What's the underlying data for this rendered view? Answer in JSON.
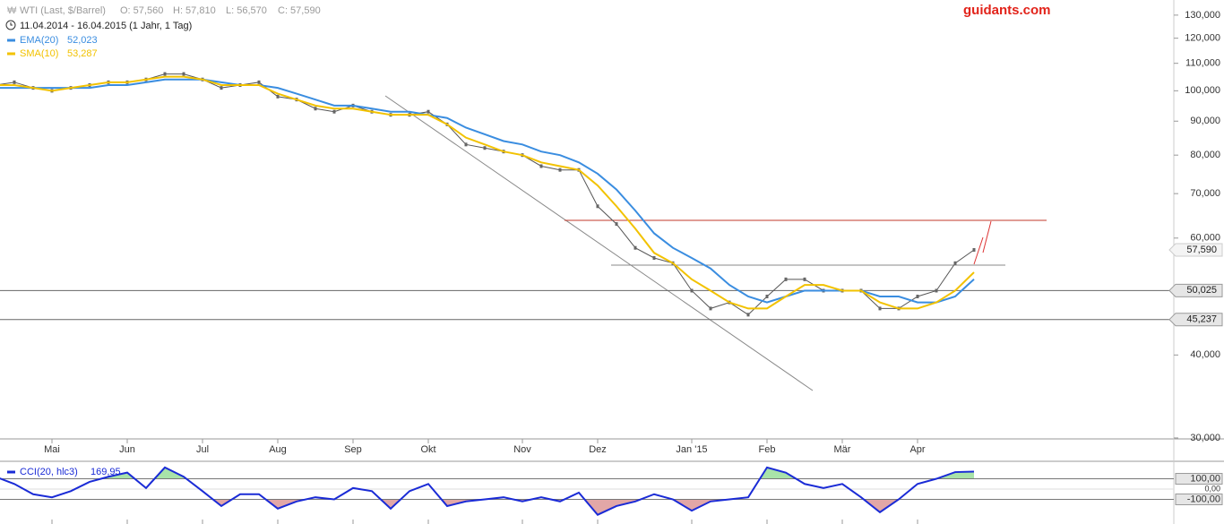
{
  "chart_data": [
    {
      "type": "line",
      "title": "WTI (Last, $/Barrel)",
      "ohlc_labels": [
        "O: 57,560",
        "H: 57,810",
        "L: 56,570",
        "C: 57,590"
      ],
      "subtitle": "11.04.2014 - 16.04.2015 (1 Jahr, 1 Tag)",
      "brand": "guidants.com",
      "categories": [
        null,
        null,
        null,
        "Mai",
        null,
        null,
        null,
        "Jun",
        null,
        null,
        null,
        "Jul",
        null,
        null,
        null,
        "Aug",
        null,
        null,
        null,
        "Sep",
        null,
        null,
        null,
        "Okt",
        null,
        null,
        null,
        null,
        "Nov",
        null,
        null,
        null,
        "Dez",
        null,
        null,
        null,
        null,
        "Jan '15",
        null,
        null,
        null,
        "Feb",
        null,
        null,
        null,
        "Mär",
        null,
        null,
        null,
        "Apr",
        null,
        null,
        null
      ],
      "values": [
        102,
        103,
        101,
        100,
        101,
        102,
        103,
        103,
        104,
        106,
        106,
        104,
        101,
        102,
        103,
        98,
        97,
        94,
        93,
        95,
        93,
        92,
        92,
        93,
        89,
        83,
        82,
        81,
        80,
        77,
        76,
        76,
        67,
        63,
        58,
        56,
        55,
        50,
        47,
        48,
        46,
        49,
        52,
        52,
        50,
        50,
        50,
        47,
        47,
        49,
        50,
        55,
        57.59
      ],
      "color": "#555555",
      "series": [
        {
          "name": "EMA(20)",
          "legend_value": "52,023",
          "color": "#3a8de0",
          "values": [
            101,
            101,
            101,
            101,
            101,
            101,
            102,
            102,
            103,
            104,
            104,
            104,
            103,
            102,
            102,
            101,
            99,
            97,
            95,
            95,
            94,
            93,
            93,
            92,
            91,
            88,
            86,
            84,
            83,
            81,
            80,
            78,
            75,
            71,
            66,
            61,
            58,
            56,
            54,
            51,
            49,
            48,
            49,
            50,
            50,
            50,
            50,
            49,
            49,
            48,
            48,
            49,
            52.023
          ]
        },
        {
          "name": "SMA(10)",
          "legend_value": "53,287",
          "color": "#f2c200",
          "values": [
            102,
            102,
            101,
            100,
            101,
            102,
            103,
            103,
            104,
            105,
            105,
            104,
            102,
            102,
            102,
            99,
            97,
            95,
            94,
            94,
            93,
            92,
            92,
            92,
            89,
            85,
            83,
            81,
            80,
            78,
            77,
            76,
            72,
            67,
            62,
            57,
            55,
            52,
            50,
            48,
            47,
            47,
            49,
            51,
            51,
            50,
            50,
            48,
            47,
            47,
            48,
            50,
            53.287
          ]
        }
      ],
      "log_scale": true,
      "ylim": [
        29.9,
        137
      ],
      "yticks": [
        {
          "value": 30,
          "label": "30,000"
        },
        {
          "value": 40,
          "label": "40,000"
        },
        {
          "value": 60,
          "label": "60,000"
        },
        {
          "value": 70,
          "label": "70,000"
        },
        {
          "value": 80,
          "label": "80,000"
        },
        {
          "value": 90,
          "label": "90,000"
        },
        {
          "value": 100,
          "label": "100,000"
        },
        {
          "value": 110,
          "label": "110,000"
        },
        {
          "value": 120,
          "label": "120,000"
        },
        {
          "value": 130,
          "label": "130,000"
        }
      ],
      "levels": [
        {
          "value": 50.025,
          "label": "50,025"
        },
        {
          "value": 45.237,
          "label": "45,237"
        }
      ],
      "last_price": {
        "value": 57.59,
        "label": "57,590"
      },
      "grid": true
    },
    {
      "type": "cci",
      "name": "CCI(20, hlc3)",
      "legend_value": "169,95",
      "color": "#1a2bd6",
      "values": [
        120,
        50,
        -50,
        -80,
        -20,
        70,
        120,
        160,
        10,
        210,
        120,
        -20,
        -165,
        -50,
        -50,
        -190,
        -120,
        -80,
        -100,
        10,
        -20,
        -190,
        -20,
        50,
        -165,
        -120,
        -100,
        -80,
        -120,
        -80,
        -120,
        -35,
        -250,
        -165,
        -120,
        -50,
        -100,
        -210,
        -120,
        -100,
        -80,
        210,
        160,
        50,
        10,
        50,
        -80,
        -225,
        -100,
        50,
        100,
        165,
        169.95
      ],
      "ylim": [
        -296,
        270
      ],
      "yticks": [
        {
          "value": 100,
          "label": "100,00"
        },
        {
          "value": 0,
          "label": "0,00"
        },
        {
          "value": -100,
          "label": "-100,00"
        }
      ],
      "upper_color": "#a9e3a9",
      "lower_color": "#e2a7a7"
    }
  ]
}
